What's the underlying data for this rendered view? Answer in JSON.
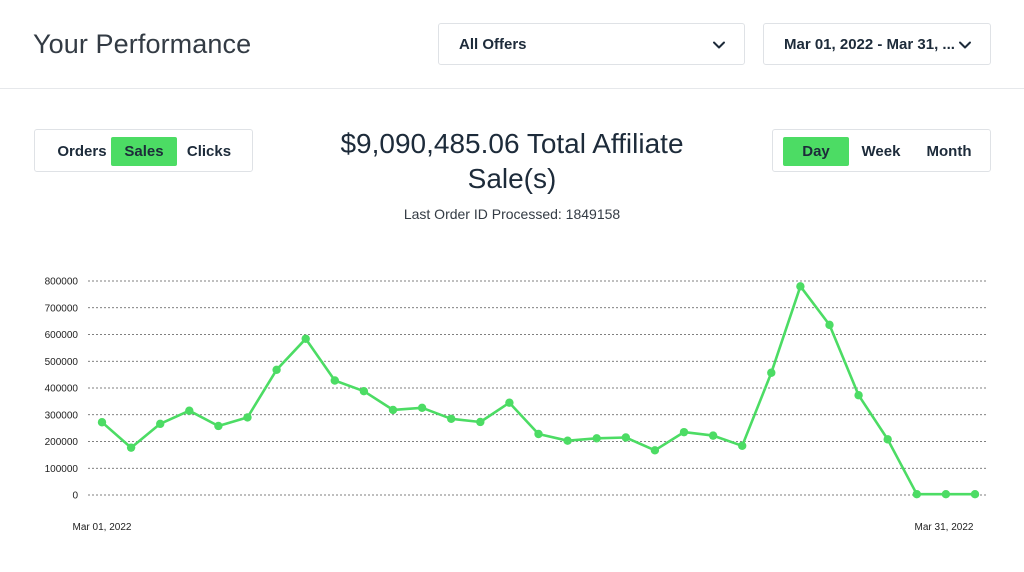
{
  "header": {
    "title": "Your Performance",
    "offers_dropdown": {
      "value": "All Offers",
      "icon": "chevron-down-icon"
    },
    "date_dropdown": {
      "value": "Mar 01, 2022 - Mar 31, ...",
      "icon": "chevron-down-icon"
    }
  },
  "metric_toggle": {
    "options": [
      "Orders",
      "Sales",
      "Clicks"
    ],
    "active": "Sales"
  },
  "period_toggle": {
    "options": [
      "Day",
      "Week",
      "Month"
    ],
    "active": "Day"
  },
  "summary": {
    "total_line1": "$9,090,485.06 Total Affiliate",
    "total_line2": "Sale(s)",
    "last_order": "Last Order ID Processed: 1849158"
  },
  "colors": {
    "accent": "#4cdc64",
    "line": "#4cdc64",
    "text": "#1d2b3a"
  },
  "chart_data": {
    "type": "line",
    "x_tick_labels": [
      "Mar 01, 2022",
      "Mar 31, 2022"
    ],
    "ylim": [
      0,
      800000
    ],
    "yticks": [
      0,
      100000,
      200000,
      300000,
      400000,
      500000,
      600000,
      700000,
      800000
    ],
    "ytick_labels": [
      "0",
      "100000",
      "200000",
      "300000",
      "400000",
      "500000",
      "600000",
      "700000",
      "800000"
    ],
    "grid": "horizontal dashed",
    "x": [
      "Mar 01, 2022",
      "Mar 02, 2022",
      "Mar 03, 2022",
      "Mar 04, 2022",
      "Mar 05, 2022",
      "Mar 06, 2022",
      "Mar 07, 2022",
      "Mar 08, 2022",
      "Mar 09, 2022",
      "Mar 10, 2022",
      "Mar 11, 2022",
      "Mar 12, 2022",
      "Mar 13, 2022",
      "Mar 14, 2022",
      "Mar 15, 2022",
      "Mar 16, 2022",
      "Mar 17, 2022",
      "Mar 18, 2022",
      "Mar 19, 2022",
      "Mar 20, 2022",
      "Mar 21, 2022",
      "Mar 22, 2022",
      "Mar 23, 2022",
      "Mar 24, 2022",
      "Mar 25, 2022",
      "Mar 26, 2022",
      "Mar 27, 2022",
      "Mar 28, 2022",
      "Mar 29, 2022",
      "Mar 30, 2022",
      "Mar 31, 2022"
    ],
    "series": [
      {
        "values": [
          272000,
          177000,
          266000,
          315000,
          258000,
          290000,
          468000,
          584000,
          428000,
          388000,
          318000,
          326000,
          285000,
          273000,
          345000,
          228000,
          203000,
          212000,
          215000,
          167000,
          235000,
          222000,
          184000,
          457000,
          780000,
          636000,
          373000,
          208000,
          3000,
          3000,
          3000
        ]
      }
    ]
  }
}
